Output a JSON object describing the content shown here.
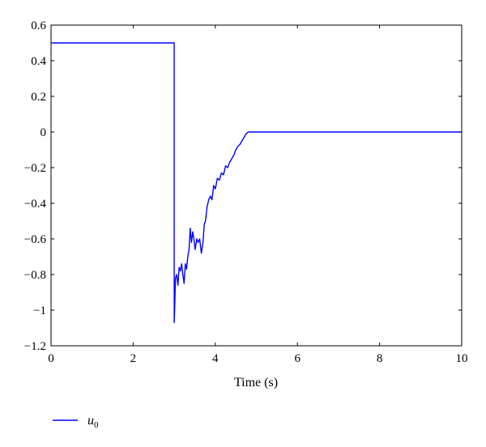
{
  "chart_data": {
    "type": "line",
    "title": "",
    "xlabel": "Time (s)",
    "ylabel": "",
    "xlim": [
      0,
      10
    ],
    "ylim": [
      -1.2,
      0.6
    ],
    "xticks": [
      0,
      2,
      4,
      6,
      8,
      10
    ],
    "yticks": [
      0.6,
      0.4,
      0.2,
      0,
      -0.2,
      -0.4,
      -0.6,
      -0.8,
      -1,
      -1.2
    ],
    "ytick_labels": [
      "0.6",
      "0.4",
      "0.2",
      "0",
      "−0.2",
      "−0.4",
      "−0.6",
      "−0.8",
      "−1",
      "−1.2"
    ],
    "xtick_labels": [
      "0",
      "2",
      "4",
      "6",
      "8",
      "10"
    ],
    "grid": false,
    "legend_position": "bottom-left",
    "series": [
      {
        "name": "u0",
        "legend_base": "u",
        "legend_sub": "0",
        "color": "#0000ff",
        "x": [
          0,
          3.0,
          3.0,
          3.0,
          3.01,
          3.03,
          3.06,
          3.09,
          3.12,
          3.15,
          3.18,
          3.21,
          3.24,
          3.27,
          3.3,
          3.33,
          3.36,
          3.39,
          3.42,
          3.45,
          3.48,
          3.51,
          3.55,
          3.58,
          3.62,
          3.66,
          3.7,
          3.73,
          3.76,
          3.8,
          3.84,
          3.88,
          3.92,
          3.96,
          4.0,
          4.05,
          4.1,
          4.15,
          4.2,
          4.25,
          4.3,
          4.35,
          4.4,
          4.45,
          4.5,
          4.55,
          4.6,
          4.65,
          4.7,
          4.75,
          4.8,
          4.85,
          5.0,
          6.0,
          8.0,
          10.0
        ],
        "y": [
          0.5,
          0.5,
          0.0,
          -1.07,
          -1.0,
          -0.82,
          -0.8,
          -0.86,
          -0.76,
          -0.78,
          -0.74,
          -0.8,
          -0.85,
          -0.74,
          -0.77,
          -0.7,
          -0.66,
          -0.54,
          -0.62,
          -0.56,
          -0.6,
          -0.66,
          -0.6,
          -0.62,
          -0.6,
          -0.68,
          -0.62,
          -0.52,
          -0.5,
          -0.42,
          -0.38,
          -0.36,
          -0.38,
          -0.3,
          -0.32,
          -0.26,
          -0.27,
          -0.23,
          -0.24,
          -0.19,
          -0.2,
          -0.17,
          -0.15,
          -0.13,
          -0.1,
          -0.08,
          -0.07,
          -0.05,
          -0.03,
          -0.01,
          0.0,
          0.0,
          0.0,
          0.0,
          0.0,
          0.0
        ]
      }
    ]
  }
}
